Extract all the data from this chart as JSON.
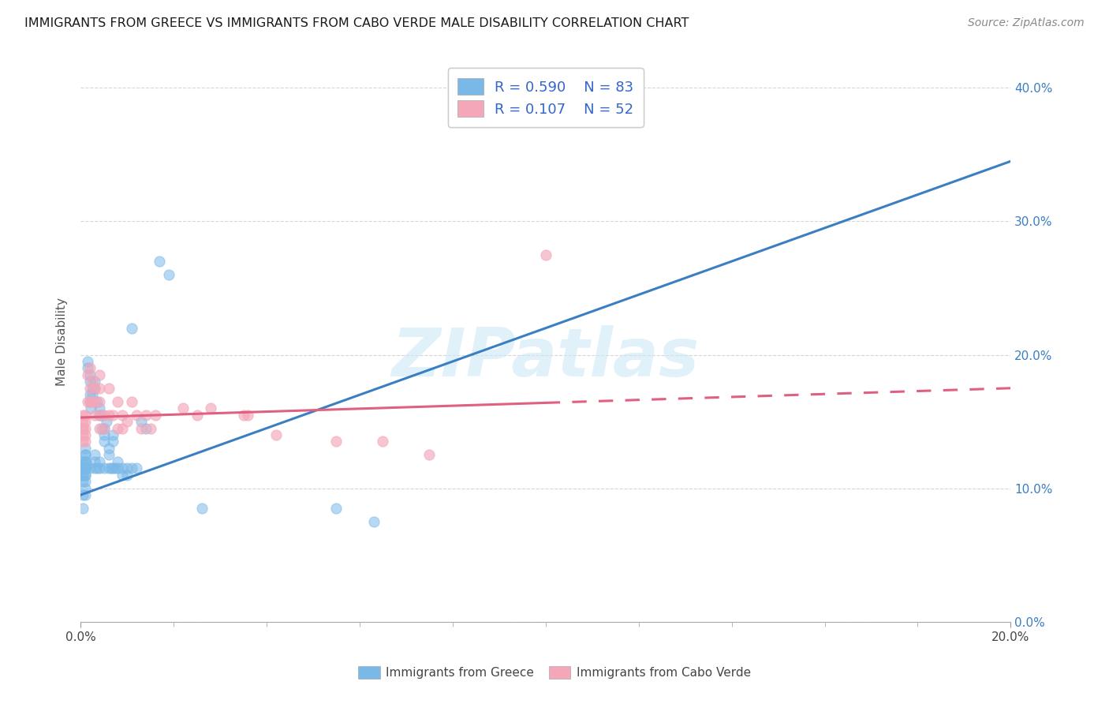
{
  "title": "IMMIGRANTS FROM GREECE VS IMMIGRANTS FROM CABO VERDE MALE DISABILITY CORRELATION CHART",
  "source": "Source: ZipAtlas.com",
  "ylabel": "Male Disability",
  "legend_labels": [
    "Immigrants from Greece",
    "Immigrants from Cabo Verde"
  ],
  "legend_r_values": [
    "0.590",
    "0.107"
  ],
  "legend_n_values": [
    "83",
    "52"
  ],
  "blue_color": "#7ab8e8",
  "blue_line_color": "#3a7fc1",
  "pink_color": "#f4a7b9",
  "pink_line_color": "#e06080",
  "blue_scatter_x": [
    0.001,
    0.001,
    0.001,
    0.001,
    0.001,
    0.0012,
    0.0012,
    0.0015,
    0.0015,
    0.002,
    0.002,
    0.002,
    0.002,
    0.002,
    0.0022,
    0.0025,
    0.0025,
    0.003,
    0.003,
    0.003,
    0.003,
    0.003,
    0.0035,
    0.0035,
    0.004,
    0.004,
    0.004,
    0.004,
    0.0045,
    0.0045,
    0.005,
    0.005,
    0.005,
    0.005,
    0.0055,
    0.006,
    0.006,
    0.006,
    0.0065,
    0.007,
    0.007,
    0.007,
    0.0075,
    0.008,
    0.008,
    0.009,
    0.009,
    0.01,
    0.01,
    0.011,
    0.011,
    0.012,
    0.013,
    0.014,
    0.0005,
    0.0005,
    0.0005,
    0.0005,
    0.0005,
    0.0005,
    0.0005,
    0.0005,
    0.0005,
    0.0005,
    0.0005,
    0.0005,
    0.0005,
    0.0005,
    0.0005,
    0.001,
    0.001,
    0.001,
    0.001,
    0.001,
    0.001,
    0.001,
    0.001,
    0.017,
    0.019,
    0.026,
    0.055,
    0.063,
    0.1
  ],
  "blue_scatter_y": [
    0.12,
    0.125,
    0.115,
    0.13,
    0.11,
    0.12,
    0.115,
    0.195,
    0.19,
    0.185,
    0.18,
    0.115,
    0.17,
    0.165,
    0.16,
    0.175,
    0.17,
    0.18,
    0.175,
    0.125,
    0.12,
    0.115,
    0.165,
    0.115,
    0.16,
    0.155,
    0.12,
    0.115,
    0.155,
    0.145,
    0.145,
    0.14,
    0.135,
    0.115,
    0.15,
    0.13,
    0.125,
    0.115,
    0.115,
    0.14,
    0.135,
    0.115,
    0.115,
    0.12,
    0.115,
    0.115,
    0.11,
    0.11,
    0.115,
    0.22,
    0.115,
    0.115,
    0.15,
    0.145,
    0.12,
    0.115,
    0.115,
    0.115,
    0.115,
    0.115,
    0.11,
    0.115,
    0.115,
    0.115,
    0.115,
    0.11,
    0.105,
    0.095,
    0.085,
    0.125,
    0.12,
    0.115,
    0.115,
    0.11,
    0.105,
    0.1,
    0.095,
    0.27,
    0.26,
    0.085,
    0.085,
    0.075,
    0.405
  ],
  "pink_scatter_x": [
    0.0005,
    0.0005,
    0.0005,
    0.0005,
    0.0005,
    0.0005,
    0.001,
    0.001,
    0.001,
    0.001,
    0.001,
    0.0015,
    0.0015,
    0.002,
    0.002,
    0.002,
    0.0025,
    0.0025,
    0.003,
    0.003,
    0.003,
    0.004,
    0.004,
    0.004,
    0.004,
    0.004,
    0.005,
    0.005,
    0.006,
    0.006,
    0.007,
    0.008,
    0.008,
    0.009,
    0.009,
    0.01,
    0.011,
    0.012,
    0.013,
    0.014,
    0.015,
    0.016,
    0.022,
    0.025,
    0.028,
    0.035,
    0.036,
    0.042,
    0.055,
    0.065,
    0.075,
    0.1
  ],
  "pink_scatter_y": [
    0.155,
    0.15,
    0.145,
    0.145,
    0.14,
    0.135,
    0.155,
    0.15,
    0.145,
    0.14,
    0.135,
    0.185,
    0.165,
    0.19,
    0.175,
    0.165,
    0.18,
    0.165,
    0.175,
    0.165,
    0.155,
    0.185,
    0.175,
    0.165,
    0.155,
    0.145,
    0.155,
    0.145,
    0.175,
    0.155,
    0.155,
    0.165,
    0.145,
    0.155,
    0.145,
    0.15,
    0.165,
    0.155,
    0.145,
    0.155,
    0.145,
    0.155,
    0.16,
    0.155,
    0.16,
    0.155,
    0.155,
    0.14,
    0.135,
    0.135,
    0.125,
    0.275
  ],
  "blue_line": {
    "x0": 0.0,
    "x1": 0.2,
    "y0": 0.095,
    "y1": 0.345
  },
  "pink_line": {
    "x0": 0.0,
    "x1": 0.2,
    "y0": 0.153,
    "y1": 0.175
  },
  "pink_line_solid_end": 0.1,
  "xlim": [
    0.0,
    0.2
  ],
  "ylim": [
    0.0,
    0.42
  ],
  "xtick_major": [
    0.0,
    0.2
  ],
  "xtick_minor_count": 9,
  "yticks": [
    0.0,
    0.1,
    0.2,
    0.3,
    0.4
  ],
  "watermark": "ZIPatlas",
  "background_color": "#ffffff",
  "grid_color": "#cccccc"
}
